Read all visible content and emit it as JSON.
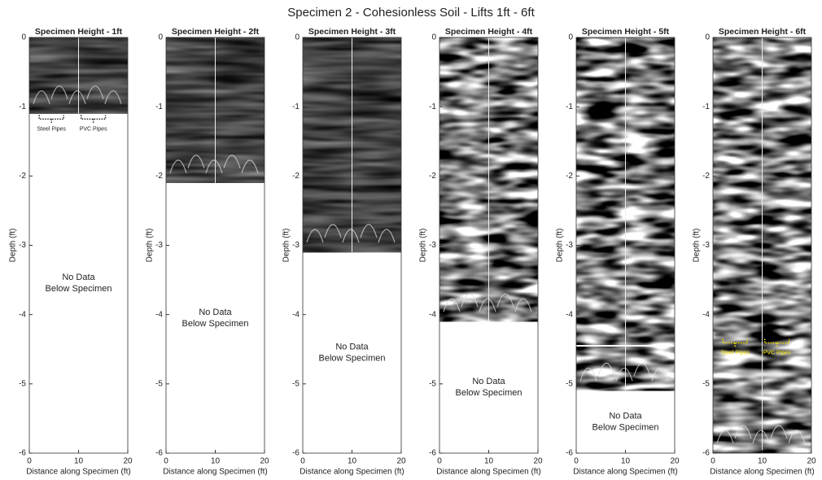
{
  "title": "Specimen 2 - Cohesionless Soil - Lifts 1ft - 6ft",
  "chart_data": [
    {
      "type": "image",
      "title": "Specimen Height - 1ft",
      "xlabel": "Distance along Specimen (ft)",
      "ylabel": "Depth (ft)",
      "xlim": [
        0,
        20
      ],
      "xticks": [
        0,
        10,
        20
      ],
      "ylim": [
        -6,
        0
      ],
      "yticks": [
        0,
        -1,
        -2,
        -3,
        -4,
        -5,
        -6
      ],
      "data_depth": -1.1,
      "note": [
        "No Data",
        "Below Specimen"
      ],
      "annotations": [
        {
          "text": "Steel Pipes",
          "x": 4.5,
          "y": -1.32,
          "color": "#222222"
        },
        {
          "text": "PVC Pipes",
          "x": 13,
          "y": -1.32,
          "color": "#222222"
        }
      ]
    },
    {
      "type": "image",
      "title": "Specimen Height - 2ft",
      "xlabel": "Distance along Specimen (ft)",
      "ylabel": "Depth (ft)",
      "xlim": [
        0,
        20
      ],
      "xticks": [
        0,
        10,
        20
      ],
      "ylim": [
        -6,
        0
      ],
      "yticks": [
        0,
        -1,
        -2,
        -3,
        -4,
        -5,
        -6
      ],
      "data_depth": -2.1,
      "note": [
        "No Data",
        "Below Specimen"
      ]
    },
    {
      "type": "image",
      "title": "Specimen Height - 3ft",
      "xlabel": "Distance along Specimen (ft)",
      "ylabel": "Depth (ft)",
      "xlim": [
        0,
        20
      ],
      "xticks": [
        0,
        10,
        20
      ],
      "ylim": [
        -6,
        0
      ],
      "yticks": [
        0,
        -1,
        -2,
        -3,
        -4,
        -5,
        -6
      ],
      "data_depth": -3.1,
      "note": [
        "No Data",
        "Below Specimen"
      ]
    },
    {
      "type": "image",
      "title": "Specimen Height - 4ft",
      "xlabel": "Distance along Specimen (ft)",
      "ylabel": "Depth (ft)",
      "xlim": [
        0,
        20
      ],
      "xticks": [
        0,
        10,
        20
      ],
      "ylim": [
        -6,
        0
      ],
      "yticks": [
        0,
        -1,
        -2,
        -3,
        -4,
        -5,
        -6
      ],
      "data_depth": -4.1,
      "note": [
        "No Data",
        "Below Specimen"
      ]
    },
    {
      "type": "image",
      "title": "Specimen Height - 5ft",
      "xlabel": "Distance along Specimen (ft)",
      "ylabel": "Depth (ft)",
      "xlim": [
        0,
        20
      ],
      "xticks": [
        0,
        10,
        20
      ],
      "ylim": [
        -6,
        0
      ],
      "yticks": [
        0,
        -1,
        -2,
        -3,
        -4,
        -5,
        -6
      ],
      "data_depth": -5.1,
      "note": [
        "No Data",
        "Below Specimen"
      ]
    },
    {
      "type": "image",
      "title": "Specimen Height - 6ft",
      "xlabel": "Distance along Specimen (ft)",
      "ylabel": "Depth (ft)",
      "xlim": [
        0,
        20
      ],
      "xticks": [
        0,
        10,
        20
      ],
      "ylim": [
        -6,
        0
      ],
      "yticks": [
        0,
        -1,
        -2,
        -3,
        -4,
        -5,
        -6
      ],
      "data_depth": -6,
      "annotations": [
        {
          "text": "Steel Pipes",
          "x": 4.5,
          "y": -4.55,
          "color": "#f2e200"
        },
        {
          "text": "PVC Pipes",
          "x": 13,
          "y": -4.55,
          "color": "#f2e200"
        }
      ]
    }
  ]
}
